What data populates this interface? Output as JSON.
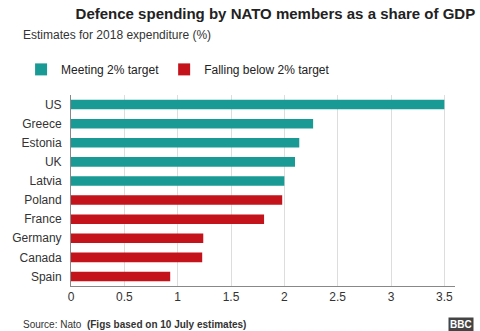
{
  "chart_data": {
    "type": "bar",
    "orientation": "horizontal",
    "title": "Defence spending by NATO members as a share of GDP",
    "subtitle": "Estimates for 2018 expenditure (%)",
    "source": "Source: Nato",
    "footnote": "(Figs based on 10 July estimates)",
    "logo": "BBC",
    "categories": [
      "US",
      "Greece",
      "Estonia",
      "UK",
      "Latvia",
      "Poland",
      "France",
      "Germany",
      "Canada",
      "Spain"
    ],
    "series": [
      {
        "name": "Meeting 2% target",
        "color": "#1a9a95",
        "values": [
          3.5,
          2.27,
          2.14,
          2.1,
          2.0,
          null,
          null,
          null,
          null,
          null
        ]
      },
      {
        "name": "Falling below 2% target",
        "color": "#c4131b",
        "values": [
          null,
          null,
          null,
          null,
          null,
          1.98,
          1.81,
          1.24,
          1.23,
          0.93
        ]
      }
    ],
    "xlim": [
      0,
      3.6
    ],
    "xticks": [
      0,
      0.5,
      1,
      1.5,
      2,
      2.5,
      3,
      3.5
    ],
    "grid": true,
    "legend": "top-left"
  }
}
